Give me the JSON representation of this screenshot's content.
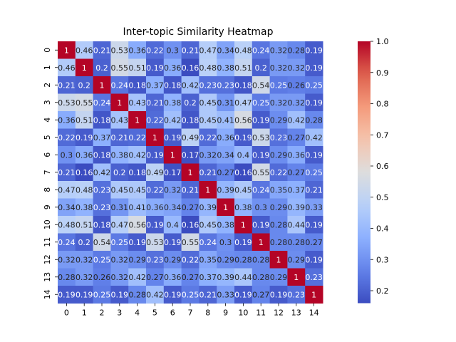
{
  "chart_data": {
    "type": "heatmap",
    "title": "Inter-topic Similarity Heatmap",
    "xlabel": "",
    "ylabel": "",
    "x_categories": [
      "0",
      "1",
      "2",
      "3",
      "4",
      "5",
      "6",
      "7",
      "8",
      "9",
      "10",
      "11",
      "12",
      "13",
      "14"
    ],
    "y_categories": [
      "0",
      "1",
      "2",
      "3",
      "4",
      "5",
      "6",
      "7",
      "8",
      "9",
      "10",
      "11",
      "12",
      "13",
      "14"
    ],
    "matrix": [
      [
        1,
        0.46,
        0.21,
        0.53,
        0.36,
        0.22,
        0.3,
        0.21,
        0.47,
        0.34,
        0.48,
        0.24,
        0.32,
        0.28,
        0.19
      ],
      [
        0.46,
        1,
        0.2,
        0.55,
        0.51,
        0.19,
        0.36,
        0.16,
        0.48,
        0.38,
        0.51,
        0.2,
        0.32,
        0.32,
        0.19
      ],
      [
        0.21,
        0.2,
        1,
        0.24,
        0.18,
        0.37,
        0.18,
        0.42,
        0.23,
        0.23,
        0.18,
        0.54,
        0.25,
        0.26,
        0.25
      ],
      [
        0.53,
        0.55,
        0.24,
        1,
        0.43,
        0.21,
        0.38,
        0.2,
        0.45,
        0.31,
        0.47,
        0.25,
        0.32,
        0.32,
        0.19
      ],
      [
        0.36,
        0.51,
        0.18,
        0.43,
        1,
        0.22,
        0.42,
        0.18,
        0.45,
        0.41,
        0.56,
        0.19,
        0.29,
        0.42,
        0.28
      ],
      [
        0.22,
        0.19,
        0.37,
        0.21,
        0.22,
        1,
        0.19,
        0.49,
        0.22,
        0.36,
        0.19,
        0.53,
        0.23,
        0.27,
        0.42
      ],
      [
        0.3,
        0.36,
        0.18,
        0.38,
        0.42,
        0.19,
        1,
        0.17,
        0.32,
        0.34,
        0.4,
        0.19,
        0.29,
        0.36,
        0.19
      ],
      [
        0.21,
        0.16,
        0.42,
        0.2,
        0.18,
        0.49,
        0.17,
        1,
        0.21,
        0.27,
        0.16,
        0.55,
        0.22,
        0.27,
        0.25
      ],
      [
        0.47,
        0.48,
        0.23,
        0.45,
        0.45,
        0.22,
        0.32,
        0.21,
        1,
        0.39,
        0.45,
        0.24,
        0.35,
        0.37,
        0.21
      ],
      [
        0.34,
        0.38,
        0.23,
        0.31,
        0.41,
        0.36,
        0.34,
        0.27,
        0.39,
        1,
        0.38,
        0.3,
        0.29,
        0.39,
        0.33
      ],
      [
        0.48,
        0.51,
        0.18,
        0.47,
        0.56,
        0.19,
        0.4,
        0.16,
        0.45,
        0.38,
        1,
        0.19,
        0.28,
        0.44,
        0.19
      ],
      [
        0.24,
        0.2,
        0.54,
        0.25,
        0.19,
        0.53,
        0.19,
        0.55,
        0.24,
        0.3,
        0.19,
        1,
        0.28,
        0.28,
        0.27
      ],
      [
        0.32,
        0.32,
        0.25,
        0.32,
        0.29,
        0.23,
        0.29,
        0.22,
        0.35,
        0.29,
        0.28,
        0.28,
        1,
        0.29,
        0.19
      ],
      [
        0.28,
        0.32,
        0.26,
        0.32,
        0.42,
        0.27,
        0.36,
        0.27,
        0.37,
        0.39,
        0.44,
        0.28,
        0.29,
        1,
        0.23
      ],
      [
        0.19,
        0.19,
        0.25,
        0.19,
        0.28,
        0.42,
        0.19,
        0.25,
        0.21,
        0.33,
        0.19,
        0.27,
        0.19,
        0.23,
        1
      ]
    ],
    "colormap": "coolwarm",
    "vmin": 0.16,
    "vmax": 1.0,
    "annotated": true,
    "colorbar": {
      "ticks": [
        "0.2",
        "0.3",
        "0.4",
        "0.5",
        "0.6",
        "0.7",
        "0.8",
        "0.9",
        "1.0"
      ],
      "tick_values": [
        0.2,
        0.3,
        0.4,
        0.5,
        0.6,
        0.7,
        0.8,
        0.9,
        1.0
      ]
    },
    "grid": false
  }
}
